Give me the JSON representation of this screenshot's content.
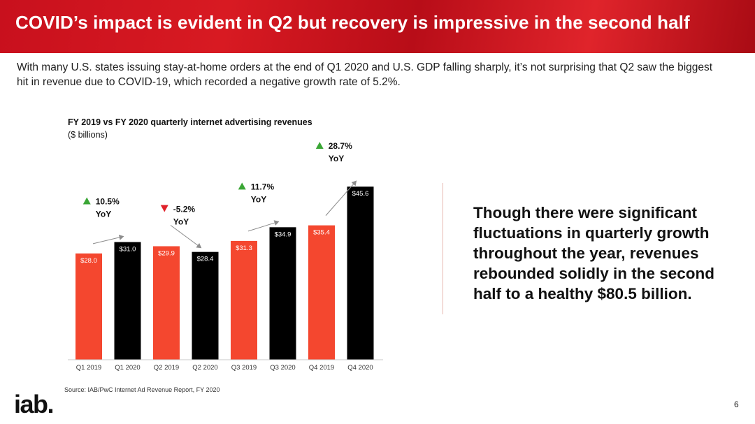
{
  "slide": {
    "title": "COVID’s impact is evident in Q2 but recovery is impressive in the second half",
    "intro": "With many U.S. states issuing stay-at-home orders at the end of Q1 2020 and U.S. GDP falling sharply, it’s not surprising that Q2 saw the biggest hit in revenue due to COVID-19, which recorded a negative growth rate of 5.2%.",
    "callout": "Though there were significant fluctuations in quarterly growth throughout the year, revenues rebounded solidly in the second half to a healthy $80.5 billion.",
    "source": "Source: IAB/PwC Internet Ad Revenue Report, FY 2020",
    "logo_text": "iab.",
    "page_number": "6",
    "colors": {
      "banner": "#d0141e",
      "fy2019": "#f4472f",
      "fy2020": "#000000",
      "up": "#3aa635",
      "down": "#e0222a"
    }
  },
  "chart_data": {
    "type": "bar",
    "title": "FY 2019 vs FY 2020 quarterly internet advertising revenues",
    "subtitle": "($ billions)",
    "categories": [
      "Q1 2019",
      "Q1 2020",
      "Q2 2019",
      "Q2 2020",
      "Q3 2019",
      "Q3 2020",
      "Q4 2019",
      "Q4 2020"
    ],
    "values": [
      28.0,
      31.0,
      29.9,
      28.4,
      31.3,
      34.9,
      35.4,
      45.6
    ],
    "data_labels": [
      "$28.0",
      "$31.0",
      "$29.9",
      "$28.4",
      "$31.3",
      "$34.9",
      "$35.4",
      "$45.6"
    ],
    "bar_years": [
      "2019",
      "2020",
      "2019",
      "2020",
      "2019",
      "2020",
      "2019",
      "2020"
    ],
    "ylim": [
      0,
      46
    ],
    "grid": false,
    "annotations": [
      {
        "label": "10.5%",
        "sub": "YoY",
        "direction": "up",
        "from": 0,
        "to": 1
      },
      {
        "label": "-5.2%",
        "sub": "YoY",
        "direction": "down",
        "from": 2,
        "to": 3
      },
      {
        "label": "11.7%",
        "sub": "YoY",
        "direction": "up",
        "from": 4,
        "to": 5
      },
      {
        "label": "28.7%",
        "sub": "YoY",
        "direction": "up",
        "from": 6,
        "to": 7
      }
    ]
  }
}
